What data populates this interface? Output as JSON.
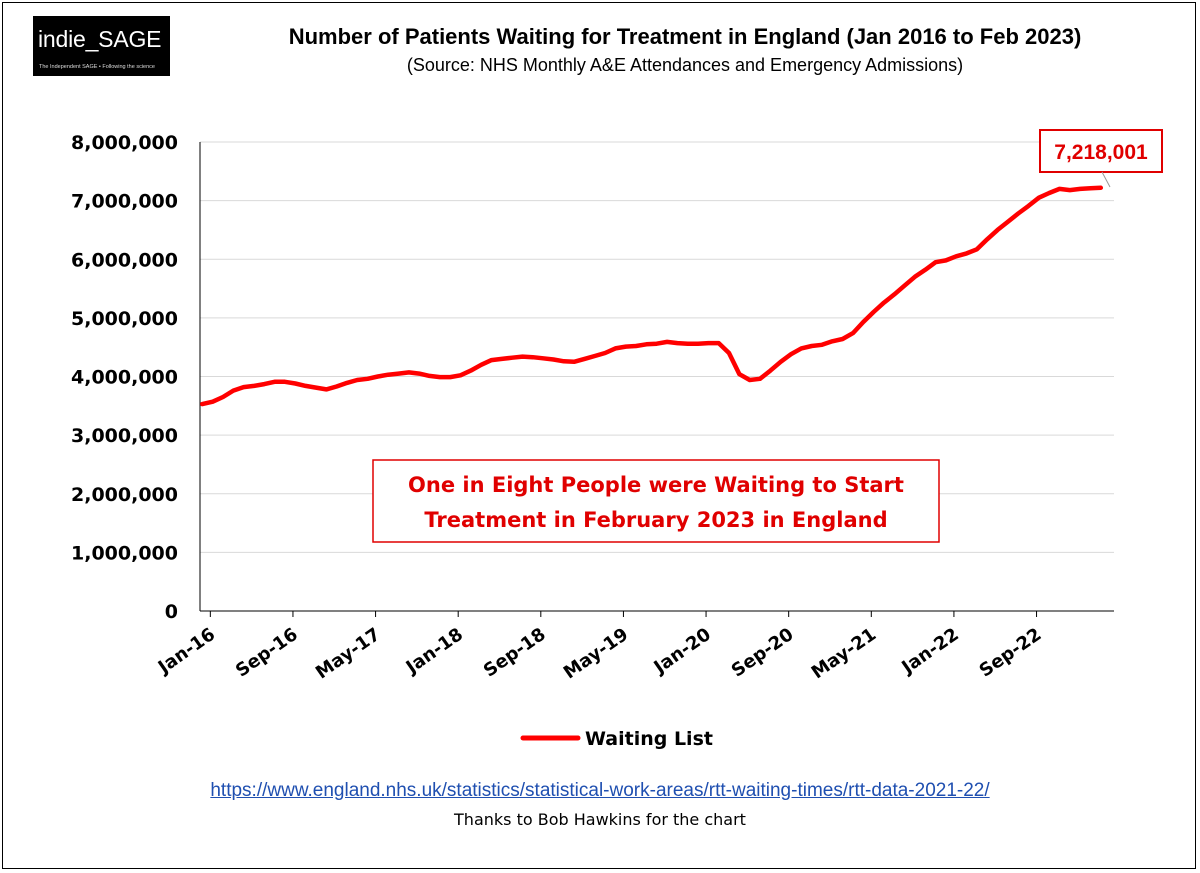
{
  "logo": {
    "name": "indie_SAGE",
    "tagline": "The Independent SAGE • Following the science"
  },
  "header": {
    "title": "Number of Patients Waiting for Treatment in England (Jan 2016 to Feb 2023)",
    "subtitle": "(Source: NHS Monthly A&E Attendances and Emergency Admissions)"
  },
  "footer": {
    "url": "https://www.england.nhs.uk/statistics/statistical-work-areas/rtt-waiting-times/rtt-data-2021-22/",
    "credit": "Thanks to Bob Hawkins for the chart"
  },
  "colors": {
    "line": "#ff0000",
    "callout_text": "#e00000",
    "gridline": "#d9d9d9"
  },
  "chart_data": {
    "type": "line",
    "title": "Number of Patients Waiting for Treatment in England (Jan 2016 to Feb 2023)",
    "xlabel": "",
    "ylabel": "",
    "ylim": [
      0,
      8000000
    ],
    "y_ticks": [
      "0",
      "1,000,000",
      "2,000,000",
      "3,000,000",
      "4,000,000",
      "5,000,000",
      "6,000,000",
      "7,000,000",
      "8,000,000"
    ],
    "x_tick_labels": [
      "Jan-16",
      "Sep-16",
      "May-17",
      "Jan-18",
      "Sep-18",
      "May-19",
      "Jan-20",
      "Sep-20",
      "May-21",
      "Jan-22",
      "Sep-22"
    ],
    "x_tick_interval_months": 8,
    "grid": true,
    "legend": {
      "position": "bottom",
      "entries": [
        "Waiting List"
      ]
    },
    "end_label": "7,218,001",
    "annotation": [
      "One in Eight People were Waiting to Start",
      "Treatment in February 2023 in England"
    ],
    "series": [
      {
        "name": "Waiting List",
        "start": "Jan-16",
        "values": [
          3530000,
          3570000,
          3650000,
          3760000,
          3820000,
          3840000,
          3870000,
          3910000,
          3910000,
          3880000,
          3840000,
          3810000,
          3780000,
          3830000,
          3890000,
          3940000,
          3960000,
          4000000,
          4030000,
          4050000,
          4070000,
          4050000,
          4010000,
          3990000,
          3990000,
          4020000,
          4100000,
          4200000,
          4280000,
          4300000,
          4320000,
          4340000,
          4330000,
          4310000,
          4290000,
          4260000,
          4250000,
          4300000,
          4350000,
          4400000,
          4480000,
          4510000,
          4520000,
          4550000,
          4560000,
          4590000,
          4570000,
          4560000,
          4560000,
          4570000,
          4570000,
          4400000,
          4040000,
          3940000,
          3960000,
          4100000,
          4250000,
          4380000,
          4480000,
          4520000,
          4540000,
          4600000,
          4640000,
          4740000,
          4930000,
          5100000,
          5260000,
          5400000,
          5550000,
          5700000,
          5820000,
          5950000,
          5980000,
          6050000,
          6100000,
          6170000,
          6340000,
          6500000,
          6640000,
          6780000,
          6910000,
          7050000,
          7130000,
          7200000,
          7180000,
          7200000,
          7210000,
          7218001
        ]
      }
    ]
  }
}
